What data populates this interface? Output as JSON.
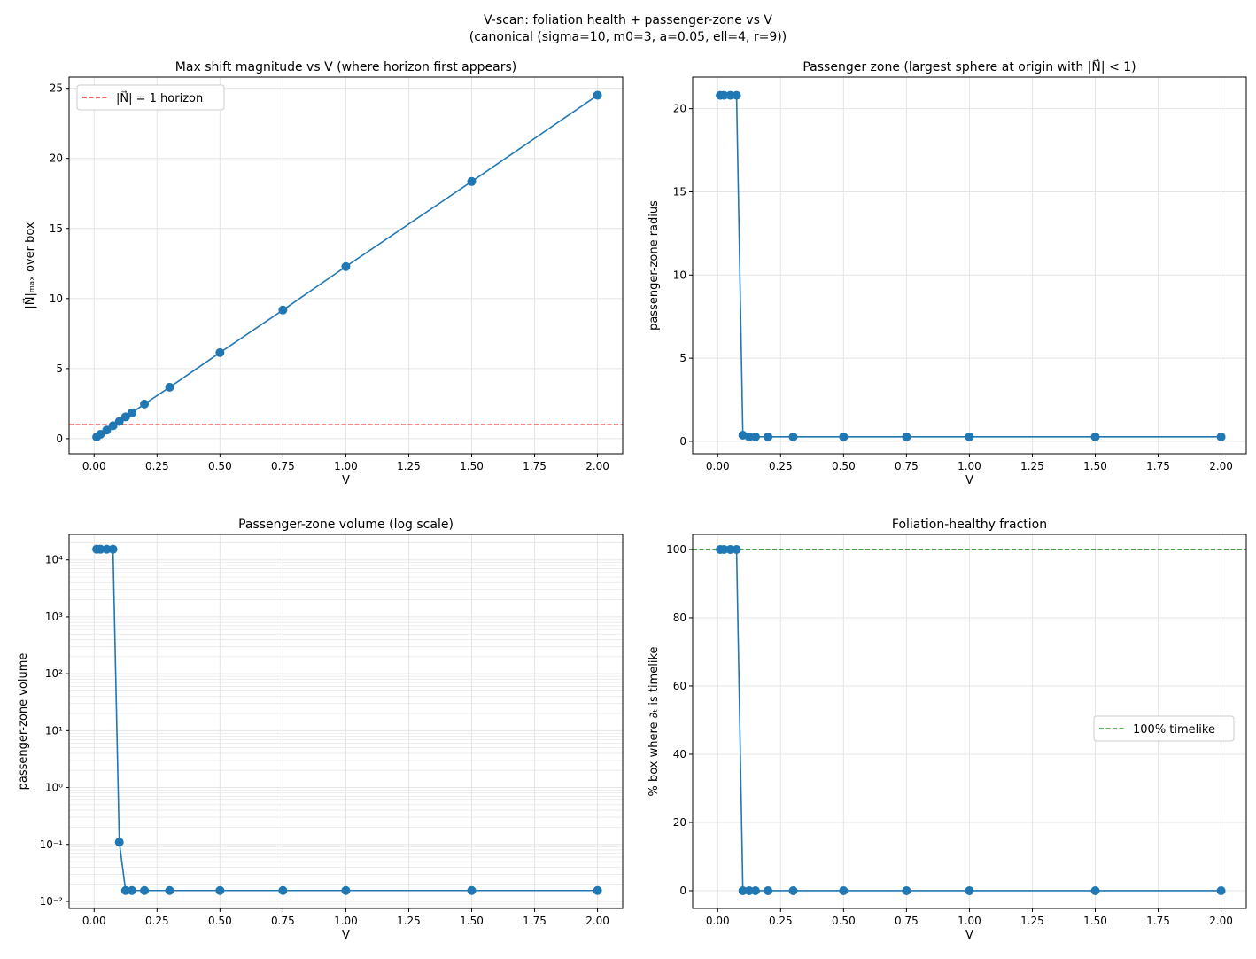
{
  "suptitle": [
    "V-scan: foliation health + passenger-zone vs V",
    "(canonical (sigma=10, m0=3, a=0.05, ell=4, r=9))"
  ],
  "colors": {
    "series": "#1f77b4",
    "horizon": "#ff0000",
    "healthy": "#008000",
    "grid": "#e5e5e5"
  },
  "chart_data": [
    {
      "type": "line",
      "title": "Max shift magnitude vs V (where horizon first appears)",
      "xlabel": "V",
      "ylabel": "|N⃗|ₘₐₓ over box",
      "x": [
        0.01,
        0.025,
        0.05,
        0.075,
        0.1,
        0.125,
        0.15,
        0.2,
        0.3,
        0.5,
        0.75,
        1.0,
        1.5,
        2.0
      ],
      "values": [
        0.12,
        0.31,
        0.61,
        0.92,
        1.23,
        1.55,
        1.84,
        2.47,
        3.67,
        6.14,
        9.18,
        12.28,
        18.35,
        24.5
      ],
      "xlim": [
        -0.0995,
        2.1
      ],
      "ylim": [
        -1.08,
        25.8
      ],
      "yscale": "linear",
      "xticks": [
        0,
        0.25,
        0.5,
        0.75,
        1.0,
        1.25,
        1.5,
        1.75,
        2.0
      ],
      "xticklabels": [
        "0.00",
        "0.25",
        "0.50",
        "0.75",
        "1.00",
        "1.25",
        "1.50",
        "1.75",
        "2.00"
      ],
      "yticks": [
        0,
        5,
        10,
        15,
        20,
        25
      ],
      "yticklabels": [
        "0",
        "5",
        "10",
        "15",
        "20",
        "25"
      ],
      "hline": {
        "y": 1,
        "label": "|N⃗| = 1 horizon",
        "color": "#ff0000"
      },
      "legend": "top-left",
      "grid": true
    },
    {
      "type": "line",
      "title": "Passenger zone (largest sphere at origin with |N⃗| < 1)",
      "xlabel": "V",
      "ylabel": "passenger-zone radius",
      "x": [
        0.01,
        0.025,
        0.05,
        0.075,
        0.1,
        0.125,
        0.15,
        0.2,
        0.3,
        0.5,
        0.75,
        1.0,
        1.5,
        2.0
      ],
      "values": [
        20.8,
        20.8,
        20.8,
        20.8,
        0.37,
        0.27,
        0.27,
        0.27,
        0.27,
        0.27,
        0.27,
        0.27,
        0.27,
        0.27
      ],
      "xlim": [
        -0.0995,
        2.1
      ],
      "ylim": [
        -0.75,
        21.9
      ],
      "yscale": "linear",
      "xticks": [
        0,
        0.25,
        0.5,
        0.75,
        1.0,
        1.25,
        1.5,
        1.75,
        2.0
      ],
      "xticklabels": [
        "0.00",
        "0.25",
        "0.50",
        "0.75",
        "1.00",
        "1.25",
        "1.50",
        "1.75",
        "2.00"
      ],
      "yticks": [
        0,
        5,
        10,
        15,
        20
      ],
      "yticklabels": [
        "0",
        "5",
        "10",
        "15",
        "20"
      ],
      "grid": true
    },
    {
      "type": "line",
      "title": "Passenger-zone volume (log scale)",
      "xlabel": "V",
      "ylabel": "passenger-zone volume",
      "x": [
        0.01,
        0.025,
        0.05,
        0.075,
        0.1,
        0.125,
        0.15,
        0.2,
        0.3,
        0.5,
        0.75,
        1.0,
        1.5,
        2.0
      ],
      "values": [
        15400,
        15400,
        15400,
        15400,
        0.11,
        0.0155,
        0.0155,
        0.0155,
        0.0155,
        0.0155,
        0.0155,
        0.0155,
        0.0155,
        0.0155
      ],
      "xlim": [
        -0.0995,
        2.1
      ],
      "ylim": [
        0.0075,
        28000
      ],
      "yscale": "log",
      "xticks": [
        0,
        0.25,
        0.5,
        0.75,
        1.0,
        1.25,
        1.5,
        1.75,
        2.0
      ],
      "xticklabels": [
        "0.00",
        "0.25",
        "0.50",
        "0.75",
        "1.00",
        "1.25",
        "1.50",
        "1.75",
        "2.00"
      ],
      "yticks": [
        0.01,
        0.1,
        1,
        10,
        100,
        1000,
        10000
      ],
      "yticklabels": [
        "10⁻²",
        "10⁻¹",
        "10⁰",
        "10¹",
        "10²",
        "10³",
        "10⁴"
      ],
      "grid": true
    },
    {
      "type": "line",
      "title": "Foliation-healthy fraction",
      "xlabel": "V",
      "ylabel": "% box where ∂ₜ is timelike",
      "x": [
        0.01,
        0.025,
        0.05,
        0.075,
        0.1,
        0.125,
        0.15,
        0.2,
        0.3,
        0.5,
        0.75,
        1.0,
        1.5,
        2.0
      ],
      "values": [
        100,
        100,
        100,
        100,
        0,
        0,
        0,
        0,
        0,
        0,
        0,
        0,
        0,
        0
      ],
      "xlim": [
        -0.0995,
        2.1
      ],
      "ylim": [
        -5.2,
        104.4
      ],
      "yscale": "linear",
      "xticks": [
        0,
        0.25,
        0.5,
        0.75,
        1.0,
        1.25,
        1.5,
        1.75,
        2.0
      ],
      "xticklabels": [
        "0.00",
        "0.25",
        "0.50",
        "0.75",
        "1.00",
        "1.25",
        "1.50",
        "1.75",
        "2.00"
      ],
      "yticks": [
        0,
        20,
        40,
        60,
        80,
        100
      ],
      "yticklabels": [
        "0",
        "20",
        "40",
        "60",
        "80",
        "100"
      ],
      "hline": {
        "y": 100,
        "label": "100% timelike",
        "color": "#008000"
      },
      "legend": "center-right",
      "grid": true
    }
  ]
}
